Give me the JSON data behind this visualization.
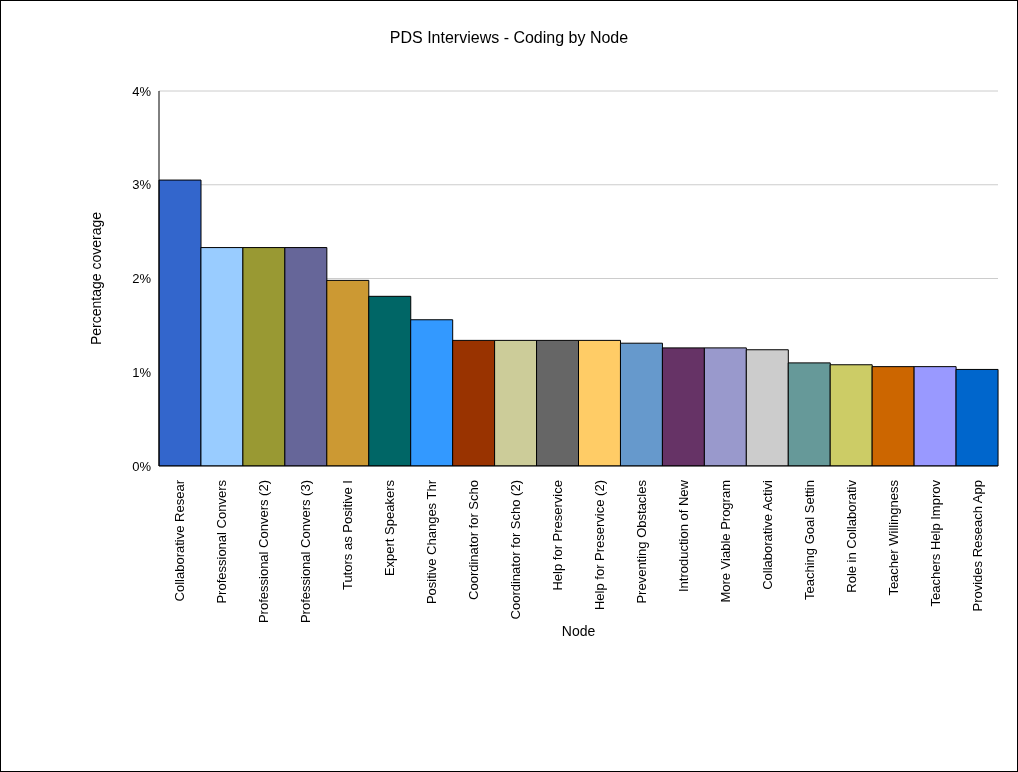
{
  "chart_data": {
    "type": "bar",
    "title": "PDS Interviews - Coding by Node",
    "xlabel": "Node",
    "ylabel": "Percentage coverage",
    "categories": [
      "Collaborative Resear",
      "Professional Convers",
      "Professional Convers (2)",
      "Professional Convers (3)",
      "Tutors as Positive I",
      "Expert Speakers",
      "Positive Changes Thr",
      "Coordinator for Scho",
      "Coordinator for Scho (2)",
      "Help for Preservice",
      "Help for Preservice (2)",
      "Preventing Obstacles",
      "Introduction of New",
      "More Viable Program",
      "Collaborative Activi",
      "Teaching Goal Settin",
      "Role in Collaborativ",
      "Teacher Willingness",
      "Teachers Help Improv",
      "Provides Reseach App"
    ],
    "values": [
      3.05,
      2.33,
      2.33,
      2.33,
      1.98,
      1.81,
      1.56,
      1.34,
      1.34,
      1.34,
      1.34,
      1.31,
      1.26,
      1.26,
      1.24,
      1.1,
      1.08,
      1.06,
      1.06,
      1.03
    ],
    "colors": [
      "#3366cc",
      "#99ccff",
      "#999933",
      "#666699",
      "#cc9933",
      "#006666",
      "#3399ff",
      "#993300",
      "#cccc99",
      "#666666",
      "#ffcc66",
      "#6699cc",
      "#663366",
      "#9999cc",
      "#cccccc",
      "#669999",
      "#cccc66",
      "#cc6600",
      "#9999ff",
      "#0066cc"
    ],
    "ylim": [
      0,
      4
    ],
    "yticks": [
      {
        "value": 0,
        "label": "0%"
      },
      {
        "value": 1,
        "label": "1%"
      },
      {
        "value": 2,
        "label": "2%"
      },
      {
        "value": 3,
        "label": "3%"
      },
      {
        "value": 4,
        "label": "4%"
      }
    ],
    "grid": "y",
    "legend": false
  }
}
